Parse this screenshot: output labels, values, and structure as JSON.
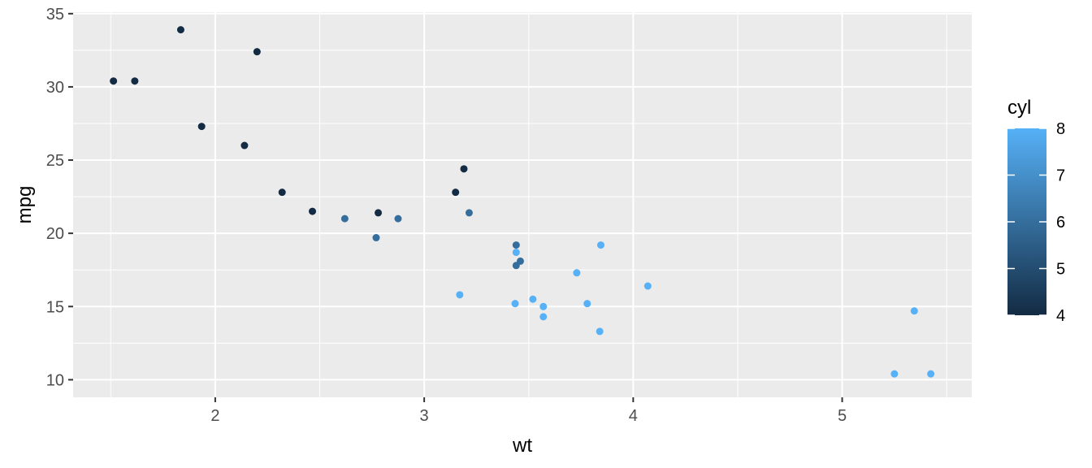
{
  "chart_data": {
    "type": "scatter",
    "title": "",
    "xlabel": "wt",
    "ylabel": "mpg",
    "xlim": [
      1.32,
      5.62
    ],
    "ylim": [
      8.8,
      35.1
    ],
    "x_ticks": [
      2,
      3,
      4,
      5
    ],
    "y_ticks": [
      10,
      15,
      20,
      25,
      30,
      35
    ],
    "x_tick_labels": [
      "2",
      "3",
      "4",
      "5"
    ],
    "y_tick_labels": [
      "10",
      "15",
      "20",
      "25",
      "30",
      "35"
    ],
    "grid": true,
    "color_variable": "cyl",
    "color_scale": {
      "low_value": 4,
      "high_value": 8,
      "low_color": "#132B43",
      "high_color": "#56B1F7",
      "breaks": [
        4,
        5,
        6,
        7,
        8
      ],
      "break_labels": [
        "4",
        "5",
        "6",
        "7",
        "8"
      ]
    },
    "legend_position": "right",
    "background_color": "#EBEBEB",
    "grid_color": "#FFFFFF",
    "points": [
      {
        "x": 2.62,
        "y": 21.0,
        "cyl": 6
      },
      {
        "x": 2.875,
        "y": 21.0,
        "cyl": 6
      },
      {
        "x": 2.32,
        "y": 22.8,
        "cyl": 4
      },
      {
        "x": 3.215,
        "y": 21.4,
        "cyl": 6
      },
      {
        "x": 3.44,
        "y": 18.7,
        "cyl": 8
      },
      {
        "x": 3.46,
        "y": 18.1,
        "cyl": 6
      },
      {
        "x": 3.57,
        "y": 14.3,
        "cyl": 8
      },
      {
        "x": 3.19,
        "y": 24.4,
        "cyl": 4
      },
      {
        "x": 3.15,
        "y": 22.8,
        "cyl": 4
      },
      {
        "x": 3.44,
        "y": 19.2,
        "cyl": 6
      },
      {
        "x": 3.44,
        "y": 17.8,
        "cyl": 6
      },
      {
        "x": 4.07,
        "y": 16.4,
        "cyl": 8
      },
      {
        "x": 3.73,
        "y": 17.3,
        "cyl": 8
      },
      {
        "x": 3.78,
        "y": 15.2,
        "cyl": 8
      },
      {
        "x": 5.25,
        "y": 10.4,
        "cyl": 8
      },
      {
        "x": 5.424,
        "y": 10.4,
        "cyl": 8
      },
      {
        "x": 5.345,
        "y": 14.7,
        "cyl": 8
      },
      {
        "x": 2.2,
        "y": 32.4,
        "cyl": 4
      },
      {
        "x": 1.615,
        "y": 30.4,
        "cyl": 4
      },
      {
        "x": 1.835,
        "y": 33.9,
        "cyl": 4
      },
      {
        "x": 2.465,
        "y": 21.5,
        "cyl": 4
      },
      {
        "x": 3.52,
        "y": 15.5,
        "cyl": 8
      },
      {
        "x": 3.435,
        "y": 15.2,
        "cyl": 8
      },
      {
        "x": 3.84,
        "y": 13.3,
        "cyl": 8
      },
      {
        "x": 3.845,
        "y": 19.2,
        "cyl": 8
      },
      {
        "x": 1.935,
        "y": 27.3,
        "cyl": 4
      },
      {
        "x": 2.14,
        "y": 26.0,
        "cyl": 4
      },
      {
        "x": 1.513,
        "y": 30.4,
        "cyl": 4
      },
      {
        "x": 3.17,
        "y": 15.8,
        "cyl": 8
      },
      {
        "x": 2.77,
        "y": 19.7,
        "cyl": 6
      },
      {
        "x": 3.57,
        "y": 15.0,
        "cyl": 8
      },
      {
        "x": 2.78,
        "y": 21.4,
        "cyl": 4
      }
    ]
  }
}
